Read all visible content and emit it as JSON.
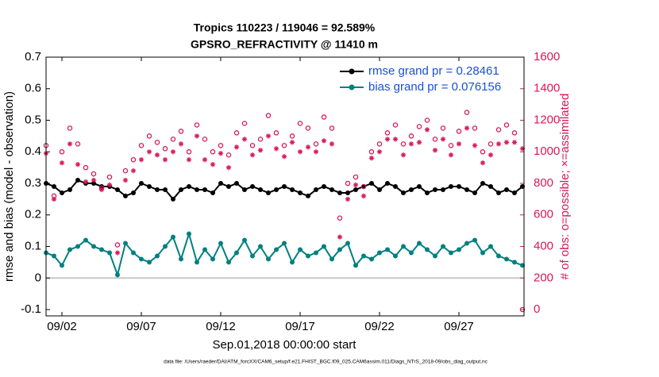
{
  "chart_data": {
    "type": "line",
    "title": "Tropics 110223 / 119046 = 92.589%",
    "subtitle": "GPSRO_REFRACTIVITY @ 11410 m",
    "x_label": "Sep.01,2018 00:00:00 start",
    "y_label": "rmse and bias (model - observation)",
    "y2_label": "# of obs: o=possible; ×=assimilated",
    "footnote": "data file: /Users/raeder/DAI/ATM_forcXX/CAM6_setup/f.e21.FHIST_BGC.f09_025.CAM6assim.011/Diags_NTrS_2018-09/obs_diag_output.nc",
    "x": [
      0,
      0.5,
      1,
      1.5,
      2,
      2.5,
      3,
      3.5,
      4,
      4.5,
      5,
      5.5,
      6,
      6.5,
      7,
      7.5,
      8,
      8.5,
      9,
      9.5,
      10,
      10.5,
      11,
      11.5,
      12,
      12.5,
      13,
      13.5,
      14,
      14.5,
      15,
      15.5,
      16,
      16.5,
      17,
      17.5,
      18,
      18.5,
      19,
      19.5,
      20,
      20.5,
      21,
      21.5,
      22,
      22.5,
      23,
      23.5,
      24,
      24.5,
      25,
      25.5,
      26,
      26.5,
      27,
      27.5,
      28,
      28.5,
      29,
      29.5,
      30
    ],
    "xlim": [
      0,
      30.1
    ],
    "xticks": [
      {
        "value": 1,
        "label": "09/02"
      },
      {
        "value": 6,
        "label": "09/07"
      },
      {
        "value": 11,
        "label": "09/12"
      },
      {
        "value": 16,
        "label": "09/17"
      },
      {
        "value": 21,
        "label": "09/22"
      },
      {
        "value": 26,
        "label": "09/27"
      }
    ],
    "ylim": [
      -0.12,
      0.7
    ],
    "yticks": [
      -0.1,
      0,
      0.1,
      0.2,
      0.3,
      0.4,
      0.5,
      0.6,
      0.7
    ],
    "y2lim": [
      -40,
      1600
    ],
    "y2ticks": [
      0,
      200,
      400,
      600,
      800,
      1000,
      1200,
      1400,
      1600
    ],
    "zero_line": true,
    "legend": "northeast",
    "series": [
      {
        "name": "rmse grand pr = 0.28461",
        "color": "#000000",
        "marker": "dot",
        "line": true,
        "values": [
          0.3,
          0.29,
          0.27,
          0.28,
          0.31,
          0.3,
          0.3,
          0.29,
          0.29,
          0.28,
          0.26,
          0.27,
          0.3,
          0.29,
          0.28,
          0.28,
          0.25,
          0.28,
          0.29,
          0.28,
          0.28,
          0.27,
          0.3,
          0.29,
          0.3,
          0.28,
          0.29,
          0.28,
          0.27,
          0.28,
          0.29,
          0.28,
          0.27,
          0.26,
          0.28,
          0.29,
          0.28,
          0.27,
          0.27,
          0.28,
          0.29,
          0.3,
          0.28,
          0.3,
          0.29,
          0.27,
          0.28,
          0.29,
          0.27,
          0.28,
          0.28,
          0.29,
          0.29,
          0.28,
          0.27,
          0.3,
          0.29,
          0.27,
          0.28,
          0.27,
          0.29
        ]
      },
      {
        "name": "bias grand pr = 0.076156",
        "color": "#008080",
        "marker": "dot",
        "line": true,
        "values": [
          0.08,
          0.07,
          0.04,
          0.09,
          0.1,
          0.12,
          0.1,
          0.09,
          0.08,
          0.01,
          0.11,
          0.08,
          0.06,
          0.05,
          0.07,
          0.1,
          0.13,
          0.06,
          0.14,
          0.05,
          0.09,
          0.06,
          0.11,
          0.05,
          0.08,
          0.12,
          0.07,
          0.1,
          0.06,
          0.09,
          0.11,
          0.05,
          0.09,
          0.07,
          0.08,
          0.1,
          0.06,
          0.09,
          0.11,
          0.04,
          0.07,
          0.06,
          0.08,
          0.09,
          0.07,
          0.1,
          0.08,
          0.11,
          0.09,
          0.07,
          0.1,
          0.08,
          0.09,
          0.11,
          0.12,
          0.08,
          0.1,
          0.07,
          0.06,
          0.05,
          0.04
        ]
      },
      {
        "color": "#d6185a",
        "marker": "circle",
        "line": false,
        "axis": "y2",
        "values": [
          1040,
          720,
          1000,
          1150,
          1050,
          900,
          860,
          770,
          840,
          410,
          880,
          950,
          1040,
          1100,
          1060,
          1020,
          1080,
          1130,
          1000,
          1170,
          1080,
          1000,
          1040,
          980,
          1120,
          1180,
          1040,
          1080,
          1230,
          1120,
          1040,
          1100,
          1180,
          1150,
          1050,
          1220,
          1150,
          580,
          800,
          840,
          780,
          1000,
          1050,
          1120,
          1170,
          1050,
          1100,
          1160,
          1200,
          1080,
          1150,
          1040,
          1130,
          1250,
          1150,
          1000,
          1050,
          1140,
          1170,
          1120,
          0
        ]
      },
      {
        "color": "#d6185a",
        "marker": "asterisk",
        "line": false,
        "axis": "y2",
        "values": [
          990,
          700,
          930,
          1050,
          920,
          810,
          820,
          760,
          790,
          360,
          820,
          880,
          950,
          1000,
          980,
          950,
          1000,
          1050,
          950,
          1100,
          950,
          920,
          990,
          900,
          1030,
          1080,
          980,
          1010,
          1100,
          1020,
          970,
          1060,
          1000,
          1030,
          1000,
          1070,
          1050,
          460,
          700,
          790,
          720,
          960,
          1000,
          1080,
          1080,
          980,
          1050,
          1060,
          1140,
          1010,
          1080,
          980,
          1050,
          1150,
          1040,
          930,
          980,
          1050,
          1060,
          1060,
          1020
        ]
      }
    ]
  }
}
